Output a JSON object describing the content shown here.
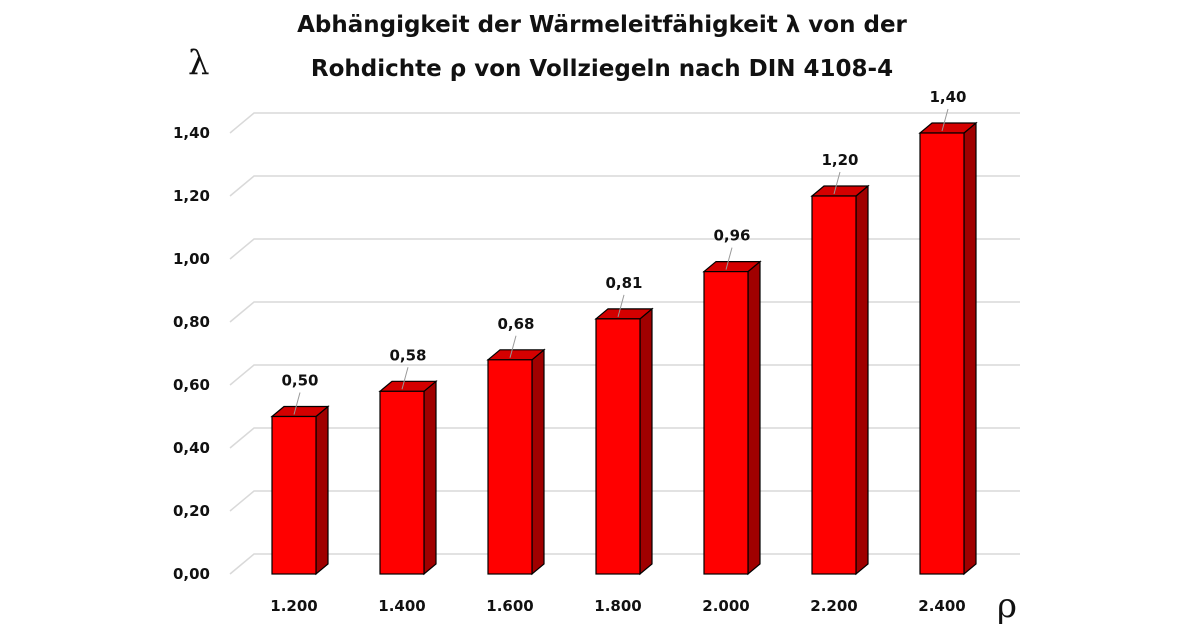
{
  "title_line1": "Abhängigkeit der Wärmeleitfähigkeit λ von der",
  "title_line2": "Rohdichte ρ von Vollziegeln nach DIN 4108-4",
  "y_symbol": "λ",
  "x_symbol": "ρ",
  "colors": {
    "bar_front": "#ff0000",
    "bar_top": "#d40000",
    "bar_side": "#a00000",
    "grid": "#d9d9d9"
  },
  "chart_data": {
    "type": "bar",
    "title": "Abhängigkeit der Wärmeleitfähigkeit λ von der Rohdichte ρ von Vollziegeln nach DIN 4108-4",
    "categories": [
      "1.200",
      "1.400",
      "1.600",
      "1.800",
      "2.000",
      "2.200",
      "2.400"
    ],
    "values": [
      0.5,
      0.58,
      0.68,
      0.81,
      0.96,
      1.2,
      1.4
    ],
    "value_labels": [
      "0,50",
      "0,58",
      "0,68",
      "0,81",
      "0,96",
      "1,20",
      "1,40"
    ],
    "yticks": [
      "0,00",
      "0,20",
      "0,40",
      "0,60",
      "0,80",
      "1,00",
      "1,20",
      "1,40"
    ],
    "ytick_values": [
      0,
      0.2,
      0.4,
      0.6,
      0.8,
      1.0,
      1.2,
      1.4
    ],
    "ylim": [
      0,
      1.4
    ],
    "xlabel": "ρ",
    "ylabel": "λ",
    "grid": true,
    "style": "3d-column"
  }
}
